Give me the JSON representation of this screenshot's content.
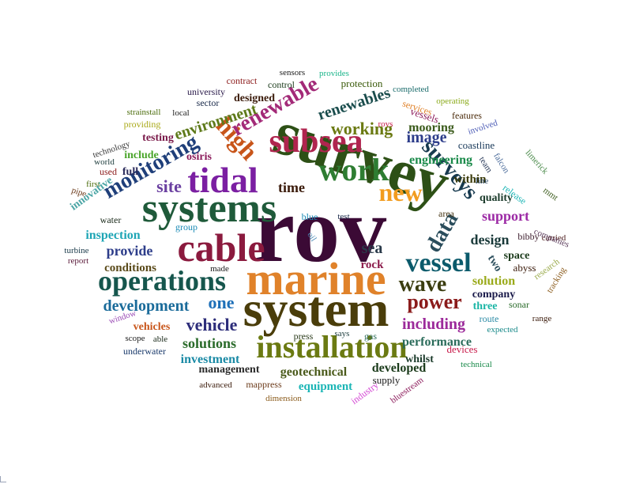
{
  "words": [
    {
      "text": "rov",
      "color": "#3b0a35"
    },
    {
      "text": "survey",
      "color": "#2d5016"
    },
    {
      "text": "marine",
      "color": "#e0822a"
    },
    {
      "text": "system",
      "color": "#4a3d0a"
    },
    {
      "text": "systems",
      "color": "#1f5a3a"
    },
    {
      "text": "cable",
      "color": "#8b1a3e"
    },
    {
      "text": "tidal",
      "color": "#7b1fa2"
    },
    {
      "text": "subsea",
      "color": "#b0254f"
    },
    {
      "text": "work",
      "color": "#2e7d32"
    },
    {
      "text": "installation",
      "color": "#6b7a12"
    },
    {
      "text": "operations",
      "color": "#16564d"
    },
    {
      "text": "vessel",
      "color": "#0b5a6b"
    },
    {
      "text": "new",
      "color": "#f29c1f"
    },
    {
      "text": "surveys",
      "color": "#173a4f"
    },
    {
      "text": "monitoring",
      "color": "#1f3f7a"
    },
    {
      "text": "high",
      "color": "#c8551a"
    },
    {
      "text": "renewable",
      "color": "#a32a78"
    },
    {
      "text": "data",
      "color": "#2a4d5c"
    },
    {
      "text": "wave",
      "color": "#3b3d10"
    },
    {
      "text": "power",
      "color": "#8b1b1b"
    },
    {
      "text": "one",
      "color": "#1d6fb8"
    },
    {
      "text": "environment",
      "color": "#5e7a1a"
    },
    {
      "text": "working",
      "color": "#6b7a12"
    },
    {
      "text": "renewables",
      "color": "#1a4d4d"
    },
    {
      "text": "site",
      "color": "#6a3fa0"
    },
    {
      "text": "development",
      "color": "#1a6b9a"
    },
    {
      "text": "vehicle",
      "color": "#2d2d7a"
    },
    {
      "text": "image",
      "color": "#2d3d8a"
    },
    {
      "text": "sea",
      "color": "#2a3a4a"
    },
    {
      "text": "including",
      "color": "#9c2a9a"
    },
    {
      "text": "solutions",
      "color": "#2a6b2a"
    },
    {
      "text": "time",
      "color": "#3a1a0a"
    },
    {
      "text": "design",
      "color": "#1a3a3a"
    },
    {
      "text": "provide",
      "color": "#2d3d8a"
    },
    {
      "text": "inspection",
      "color": "#1ea5b5"
    },
    {
      "text": "engineering",
      "color": "#1a8a4a"
    },
    {
      "text": "support",
      "color": "#9c2aa5"
    },
    {
      "text": "mooring",
      "color": "#3a5a1a"
    },
    {
      "text": "performance",
      "color": "#2a6b5a"
    },
    {
      "text": "developed",
      "color": "#1a3a1a"
    },
    {
      "text": "geotechnical",
      "color": "#4a5a1a"
    },
    {
      "text": "investment",
      "color": "#1a8aa5"
    },
    {
      "text": "solution",
      "color": "#9aaa1a"
    },
    {
      "text": "testing",
      "color": "#7a1a4a"
    },
    {
      "text": "designed",
      "color": "#3a1a0a"
    },
    {
      "text": "conditions",
      "color": "#5a4a1a"
    },
    {
      "text": "within",
      "color": "#3a3a0a"
    },
    {
      "text": "quality",
      "color": "#1a3a2a"
    },
    {
      "text": "company",
      "color": "#1a1a4a"
    },
    {
      "text": "equipment",
      "color": "#1ab5b5"
    },
    {
      "text": "management",
      "color": "#2a2a2a"
    },
    {
      "text": "vehicles",
      "color": "#c8551a"
    },
    {
      "text": "space",
      "color": "#1a3a1a"
    },
    {
      "text": "rock",
      "color": "#8b1a4a"
    },
    {
      "text": "three",
      "color": "#1ab5a5"
    },
    {
      "text": "two",
      "color": "#2a4d5c"
    },
    {
      "text": "coastline",
      "color": "#1a3a5a"
    },
    {
      "text": "include",
      "color": "#4aa52a"
    },
    {
      "text": "full",
      "color": "#2a2a5a"
    },
    {
      "text": "osiris",
      "color": "#8b1a5a"
    },
    {
      "text": "water",
      "color": "#1a2a1a"
    },
    {
      "text": "group",
      "color": "#1a8ab5"
    },
    {
      "text": "abyss",
      "color": "#3a1a0a"
    },
    {
      "text": "bibby",
      "color": "#3a1a2a"
    },
    {
      "text": "area",
      "color": "#4a3a1a"
    },
    {
      "text": "gas",
      "color": "#2a6b5a"
    },
    {
      "text": "whilst",
      "color": "#1a3a2a"
    },
    {
      "text": "supply",
      "color": "#1a1a1a"
    },
    {
      "text": "press",
      "color": "#2a3a1a"
    },
    {
      "text": "devices",
      "color": "#c81a4a"
    },
    {
      "text": "sonar",
      "color": "#2a6b2a"
    },
    {
      "text": "route",
      "color": "#2a8aa5"
    },
    {
      "text": "made",
      "color": "#1a1a1a"
    },
    {
      "text": "sector",
      "color": "#1a2a4a"
    },
    {
      "text": "control",
      "color": "#1a3a1a"
    },
    {
      "text": "protection",
      "color": "#3a5a0a"
    },
    {
      "text": "university",
      "color": "#2a1a4a"
    },
    {
      "text": "contract",
      "color": "#8b1a1a"
    },
    {
      "text": "sensors",
      "color": "#1a1a1a"
    },
    {
      "text": "provides",
      "color": "#1ab58a"
    },
    {
      "text": "completed",
      "color": "#1a6b6b"
    },
    {
      "text": "operating",
      "color": "#8aaa1a"
    },
    {
      "text": "services",
      "color": "#e0822a"
    },
    {
      "text": "vessels",
      "color": "#8b1a5a"
    },
    {
      "text": "rovs",
      "color": "#c81a4a"
    },
    {
      "text": "features",
      "color": "#4a2a0a"
    },
    {
      "text": "involved",
      "color": "#4a5ab5"
    },
    {
      "text": "strainstall",
      "color": "#4a6b0a"
    },
    {
      "text": "local",
      "color": "#1a1a1a"
    },
    {
      "text": "providing",
      "color": "#aaaa1a"
    },
    {
      "text": "technology",
      "color": "#3a3a3a"
    },
    {
      "text": "world",
      "color": "#1a3a3a"
    },
    {
      "text": "used",
      "color": "#8b1a1a"
    },
    {
      "text": "first",
      "color": "#4a6b0a"
    },
    {
      "text": "pipe",
      "color": "#6b3a1a"
    },
    {
      "text": "innovative",
      "color": "#4aa5a5"
    },
    {
      "text": "blue",
      "color": "#1a8ab5"
    },
    {
      "text": "test",
      "color": "#1a2a4a"
    },
    {
      "text": "oil",
      "color": "#4a8ab5"
    },
    {
      "text": "line",
      "color": "#1a3a5a"
    },
    {
      "text": "team",
      "color": "#2a3a5a"
    },
    {
      "text": "falcon",
      "color": "#4a6b9a"
    },
    {
      "text": "limerick",
      "color": "#4a8a4a"
    },
    {
      "text": "release",
      "color": "#1ab5b5"
    },
    {
      "text": "mmt",
      "color": "#3a5a1a"
    },
    {
      "text": "carried",
      "color": "#4a1a1a"
    },
    {
      "text": "companies",
      "color": "#5a3a5a"
    },
    {
      "text": "research",
      "color": "#9aaa4a"
    },
    {
      "text": "tracking",
      "color": "#8a5a1a"
    },
    {
      "text": "range",
      "color": "#3a1a0a"
    },
    {
      "text": "expected",
      "color": "#1a8a8a"
    },
    {
      "text": "technical",
      "color": "#1a8a4a"
    },
    {
      "text": "says",
      "color": "#1a3a3a"
    },
    {
      "text": "able",
      "color": "#1a2a1a"
    },
    {
      "text": "scope",
      "color": "#1a1a1a"
    },
    {
      "text": "window",
      "color": "#9a4ab5"
    },
    {
      "text": "turbine",
      "color": "#1a3a4a"
    },
    {
      "text": "report",
      "color": "#5a1a3a"
    },
    {
      "text": "underwater",
      "color": "#1a3a6b"
    },
    {
      "text": "advanced",
      "color": "#3a1a0a"
    },
    {
      "text": "mappress",
      "color": "#6b3a1a"
    },
    {
      "text": "dimension",
      "color": "#8a5a1a"
    },
    {
      "text": "industry",
      "color": "#d44ad4"
    },
    {
      "text": "bluestream",
      "color": "#8b1a5a"
    }
  ]
}
